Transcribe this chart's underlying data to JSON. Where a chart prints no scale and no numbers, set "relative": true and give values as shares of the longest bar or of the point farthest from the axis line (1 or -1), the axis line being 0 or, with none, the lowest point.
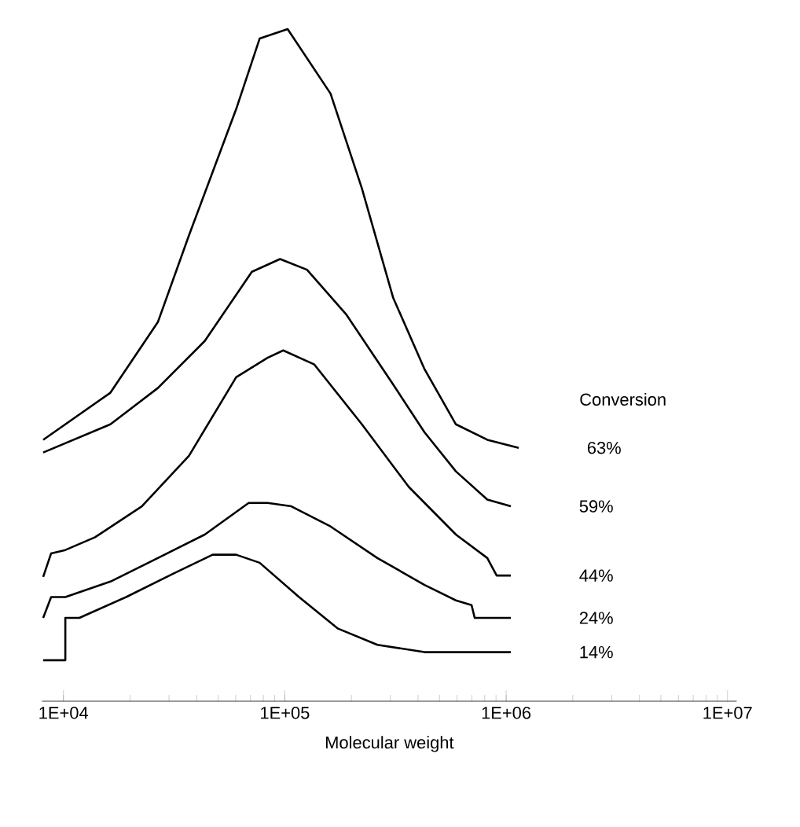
{
  "chart_data": {
    "type": "line",
    "relative": true,
    "xlabel": "Molecular weight",
    "legend_title": "Conversion",
    "log": "x",
    "xlim": [
      8000,
      11000000
    ],
    "xticks": [
      {
        "value": 10000,
        "label": "1E+04"
      },
      {
        "value": 100000,
        "label": "1E+05"
      },
      {
        "value": 1000000,
        "label": "1E+06"
      },
      {
        "value": 10000000,
        "label": "1E+07"
      }
    ],
    "marker": "none",
    "line_style": "solid",
    "series": [
      {
        "name": "63%",
        "color": "#000000",
        "x": [
          8100,
          16300,
          26700,
          36900,
          60300,
          77000,
          103000,
          161000,
          223000,
          309000,
          428000,
          593000,
          822000,
          1140000
        ],
        "values": [
          0.389,
          0.459,
          0.564,
          0.693,
          0.881,
          0.986,
          1.0,
          0.904,
          0.763,
          0.6,
          0.494,
          0.412,
          0.389,
          0.377
        ]
      },
      {
        "name": "59%",
        "color": "#000000",
        "x": [
          8100,
          16300,
          26700,
          43500,
          71000,
          95200,
          126000,
          189000,
          309000,
          428000,
          593000,
          822000,
          1050000
        ],
        "values": [
          0.37,
          0.412,
          0.466,
          0.536,
          0.639,
          0.658,
          0.642,
          0.576,
          0.471,
          0.4,
          0.342,
          0.3,
          0.29
        ]
      },
      {
        "name": "44%",
        "color": "#000000",
        "x": [
          8100,
          8800,
          10200,
          13900,
          22600,
          36900,
          60300,
          83600,
          98400,
          136000,
          223000,
          363000,
          593000,
          822000,
          906000,
          1050000
        ],
        "values": [
          0.185,
          0.22,
          0.225,
          0.244,
          0.29,
          0.365,
          0.482,
          0.511,
          0.522,
          0.501,
          0.412,
          0.319,
          0.248,
          0.213,
          0.187,
          0.187
        ]
      },
      {
        "name": "24%",
        "color": "#000000",
        "x": [
          8100,
          8800,
          10200,
          16300,
          26700,
          43500,
          68700,
          83600,
          107000,
          161000,
          262000,
          428000,
          593000,
          698000,
          721000,
          1050000
        ],
        "values": [
          0.124,
          0.155,
          0.155,
          0.178,
          0.213,
          0.248,
          0.295,
          0.295,
          0.29,
          0.26,
          0.213,
          0.173,
          0.15,
          0.143,
          0.124,
          0.124
        ]
      },
      {
        "name": "14%",
        "color": "#000000",
        "x": [
          8100,
          10200,
          10200,
          11800,
          19200,
          31400,
          47200,
          60300,
          77000,
          116000,
          174000,
          262000,
          428000,
          1050000
        ],
        "values": [
          0.061,
          0.061,
          0.124,
          0.124,
          0.155,
          0.19,
          0.218,
          0.218,
          0.206,
          0.155,
          0.108,
          0.084,
          0.073,
          0.073
        ]
      }
    ]
  }
}
